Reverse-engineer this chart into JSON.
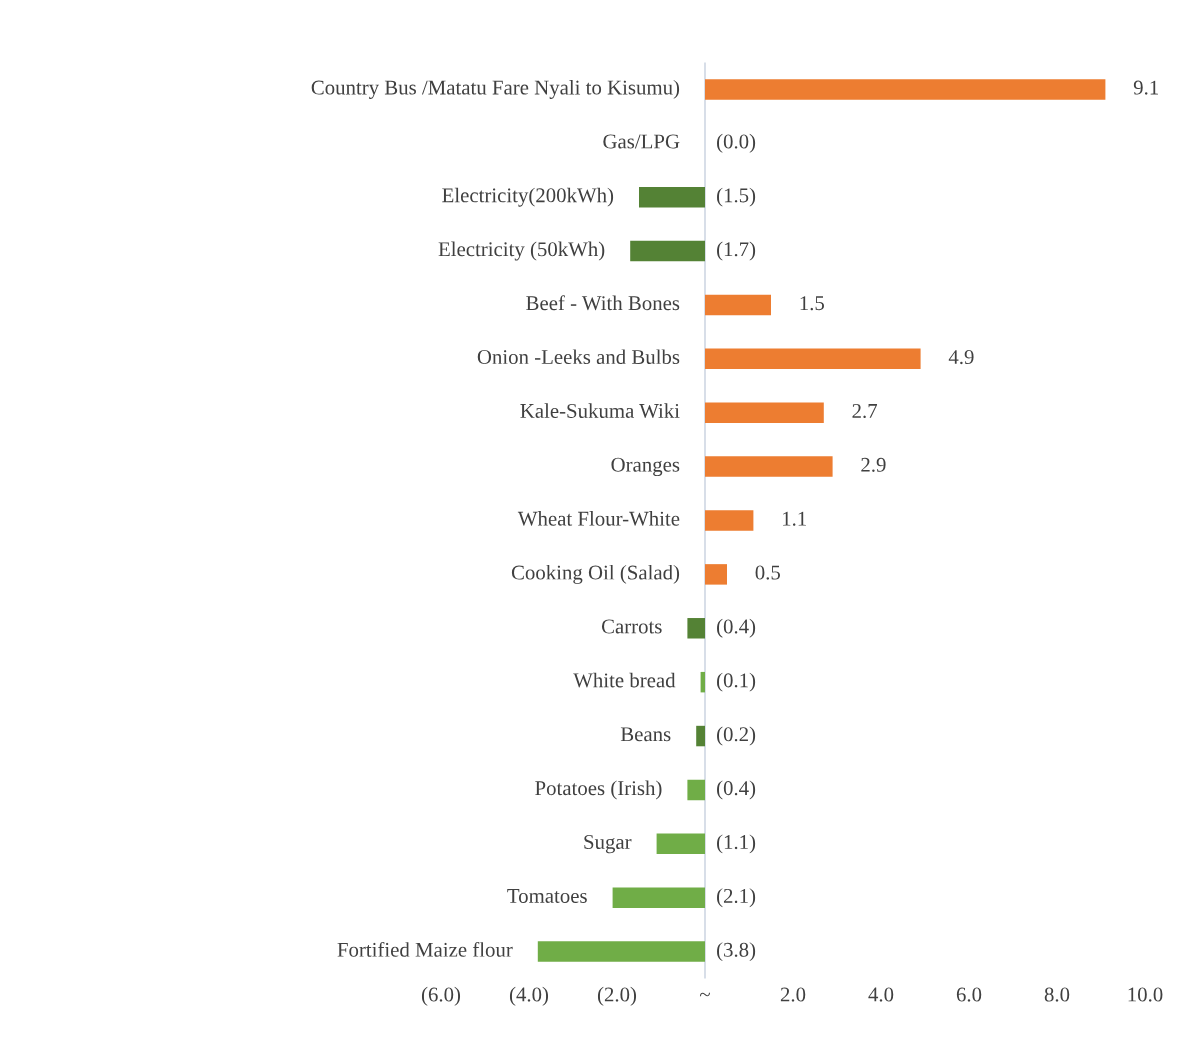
{
  "chart_data": {
    "type": "bar",
    "orientation": "horizontal",
    "categories": [
      "Country Bus /Matatu Fare Nyali to Kisumu)",
      "Gas/LPG",
      "Electricity(200kWh)",
      "Electricity (50kWh)",
      "Beef - With Bones",
      "Onion -Leeks and Bulbs",
      "Kale-Sukuma Wiki",
      "Oranges",
      "Wheat Flour-White",
      "Cooking Oil (Salad)",
      "Carrots",
      "White bread",
      "Beans",
      "Potatoes (Irish)",
      "Sugar",
      "Tomatoes",
      "Fortified Maize flour"
    ],
    "values": [
      9.1,
      0.0,
      -1.5,
      -1.7,
      1.5,
      4.9,
      2.7,
      2.9,
      1.1,
      0.5,
      -0.4,
      -0.1,
      -0.2,
      -0.4,
      -1.1,
      -2.1,
      -3.8
    ],
    "value_labels": [
      "9.1",
      "(0.0)",
      "(1.5)",
      "(1.7)",
      "1.5",
      "4.9",
      "2.7",
      "2.9",
      "1.1",
      "0.5",
      "(0.4)",
      "(0.1)",
      "(0.2)",
      "(0.4)",
      "(1.1)",
      "(2.1)",
      "(3.8)"
    ],
    "colors": [
      "#ed7d31",
      "#ed7d31",
      "#548235",
      "#548235",
      "#ed7d31",
      "#ed7d31",
      "#ed7d31",
      "#ed7d31",
      "#ed7d31",
      "#ed7d31",
      "#548235",
      "#70ad47",
      "#548235",
      "#70ad47",
      "#70ad47",
      "#70ad47",
      "#70ad47"
    ],
    "xlim": [
      -6,
      10
    ],
    "xticks": [
      {
        "value": -6,
        "label": "(6.0)"
      },
      {
        "value": -4,
        "label": "(4.0)"
      },
      {
        "value": -2,
        "label": "(2.0)"
      },
      {
        "value": 0,
        "label": "~"
      },
      {
        "value": 2,
        "label": "2.0"
      },
      {
        "value": 4,
        "label": "4.0"
      },
      {
        "value": 6,
        "label": "6.0"
      },
      {
        "value": 8,
        "label": "8.0"
      },
      {
        "value": 10,
        "label": "10.0"
      }
    ],
    "grid": false,
    "legend": false
  }
}
